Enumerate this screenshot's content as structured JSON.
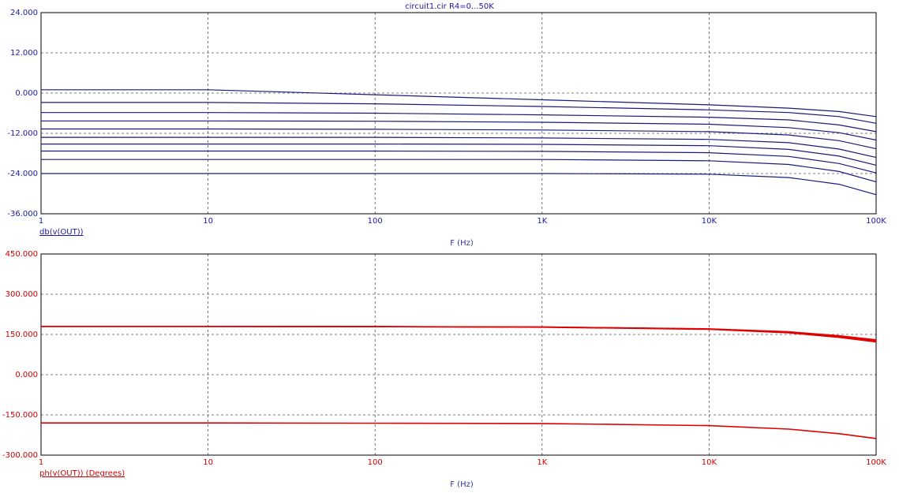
{
  "title": "circuit1.cir R4=0...50K",
  "colors": {
    "db_trace": "#1a1a7a",
    "ph_trace": "#e00000",
    "axis_text_db": "#1a1aa8",
    "axis_text_ph": "#d00000"
  },
  "chart_data": [
    {
      "type": "line",
      "name": "magnitude",
      "xscale": "log",
      "xlim": [
        1,
        100000
      ],
      "ylim": [
        -36,
        24
      ],
      "x_ticks": [
        {
          "value": 1,
          "label": "1"
        },
        {
          "value": 10,
          "label": "10"
        },
        {
          "value": 100,
          "label": "100"
        },
        {
          "value": 1000,
          "label": "1K"
        },
        {
          "value": 10000,
          "label": "10K"
        },
        {
          "value": 100000,
          "label": "100K"
        }
      ],
      "y_ticks": [
        {
          "value": 24,
          "label": "24.000"
        },
        {
          "value": 12,
          "label": "12.000"
        },
        {
          "value": 0,
          "label": "0.000"
        },
        {
          "value": -12,
          "label": "-12.000"
        },
        {
          "value": -24,
          "label": "-24.000"
        },
        {
          "value": -36,
          "label": "-36.000"
        }
      ],
      "grid": true,
      "trace_label": "db(v(OUT))",
      "xlabel": "F (Hz)",
      "x": [
        1,
        10,
        100,
        1000,
        10000,
        30000,
        60000,
        100000
      ],
      "series": [
        {
          "values": [
            1.0,
            1.0,
            -0.5,
            -2.0,
            -3.5,
            -4.5,
            -5.5,
            -7.0
          ]
        },
        {
          "values": [
            -2.8,
            -2.8,
            -3.2,
            -4.0,
            -5.0,
            -5.8,
            -7.0,
            -9.0
          ]
        },
        {
          "values": [
            -5.8,
            -5.8,
            -6.0,
            -6.5,
            -7.2,
            -8.0,
            -9.5,
            -11.5
          ]
        },
        {
          "values": [
            -8.3,
            -8.3,
            -8.4,
            -8.7,
            -9.3,
            -10.3,
            -11.8,
            -14.0
          ]
        },
        {
          "values": [
            -10.7,
            -10.7,
            -10.8,
            -11.0,
            -11.5,
            -12.5,
            -14.2,
            -16.6
          ]
        },
        {
          "values": [
            -13.2,
            -13.2,
            -13.2,
            -13.4,
            -13.8,
            -14.8,
            -16.7,
            -19.2
          ]
        },
        {
          "values": [
            -15.2,
            -15.2,
            -15.2,
            -15.3,
            -15.7,
            -16.8,
            -18.8,
            -21.5
          ]
        },
        {
          "values": [
            -17.3,
            -17.3,
            -17.3,
            -17.4,
            -17.8,
            -18.9,
            -21.0,
            -23.8
          ]
        },
        {
          "values": [
            -19.8,
            -19.8,
            -19.8,
            -19.8,
            -20.2,
            -21.3,
            -23.4,
            -26.5
          ]
        },
        {
          "values": [
            -24.0,
            -24.0,
            -24.0,
            -24.0,
            -24.2,
            -25.2,
            -27.2,
            -30.3
          ]
        }
      ]
    },
    {
      "type": "line",
      "name": "phase",
      "xscale": "log",
      "xlim": [
        1,
        100000
      ],
      "ylim": [
        -300,
        450
      ],
      "x_ticks": [
        {
          "value": 1,
          "label": "1"
        },
        {
          "value": 10,
          "label": "10"
        },
        {
          "value": 100,
          "label": "100"
        },
        {
          "value": 1000,
          "label": "1K"
        },
        {
          "value": 10000,
          "label": "10K"
        },
        {
          "value": 100000,
          "label": "100K"
        }
      ],
      "y_ticks": [
        {
          "value": 450,
          "label": "450.000"
        },
        {
          "value": 300,
          "label": "300.000"
        },
        {
          "value": 150,
          "label": "150.000"
        },
        {
          "value": 0,
          "label": "0.000"
        },
        {
          "value": -150,
          "label": "-150.000"
        },
        {
          "value": -300,
          "label": "-300.000"
        }
      ],
      "grid": true,
      "trace_label": "ph(v(OUT)) (Degrees)",
      "xlabel": "F (Hz)",
      "x": [
        1,
        10,
        100,
        1000,
        10000,
        30000,
        60000,
        100000
      ],
      "series": [
        {
          "values": [
            180,
            180,
            179,
            178,
            171,
            160,
            145,
            130
          ]
        },
        {
          "values": [
            180,
            180,
            179,
            178,
            170,
            158,
            142,
            126
          ]
        },
        {
          "values": [
            180,
            180,
            179,
            177,
            169,
            156,
            139,
            122
          ]
        },
        {
          "values": [
            -180,
            -180,
            -181,
            -182,
            -190,
            -203,
            -220,
            -238
          ]
        }
      ]
    }
  ]
}
